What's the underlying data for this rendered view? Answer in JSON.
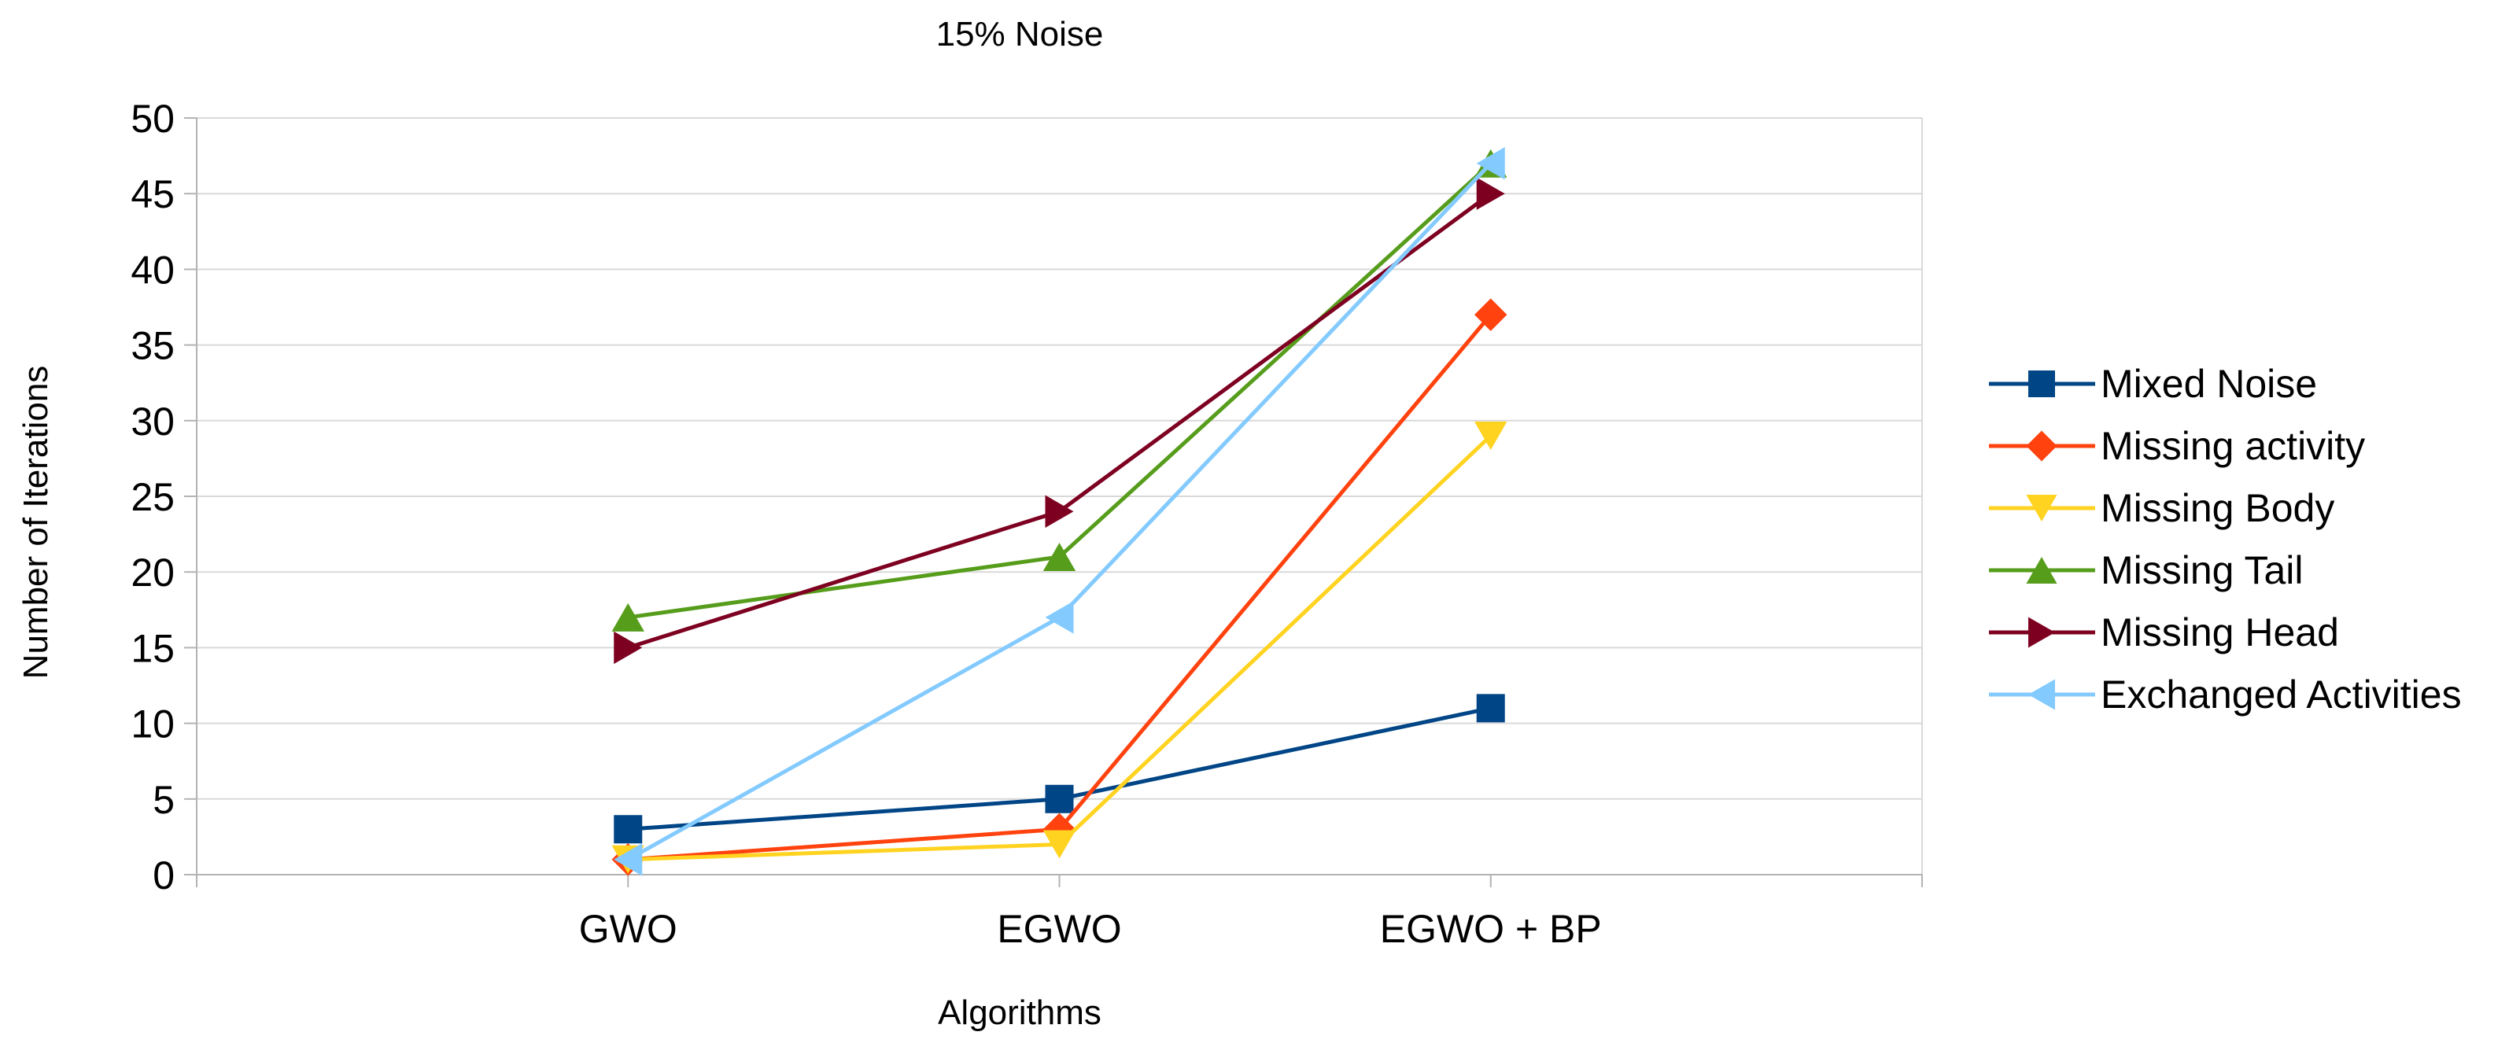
{
  "chart_data": {
    "type": "line",
    "title": "15% Noise",
    "xlabel": "Algorithms",
    "ylabel": "Number of Iterations",
    "categories": [
      "GWO",
      "EGWO",
      "EGWO + BP"
    ],
    "ylim": [
      0,
      50
    ],
    "yticks": [
      "0",
      "5",
      "10",
      "15",
      "20",
      "25",
      "30",
      "35",
      "40",
      "45",
      "50"
    ],
    "grid": true,
    "legend_position": "right",
    "series": [
      {
        "name": "Mixed Noise",
        "values": [
          3,
          5,
          11
        ],
        "color": "#004586",
        "marker": "square"
      },
      {
        "name": "Missing activity",
        "values": [
          1,
          3,
          37
        ],
        "color": "#ff420e",
        "marker": "diamond"
      },
      {
        "name": "Missing Body",
        "values": [
          1,
          2,
          29
        ],
        "color": "#ffd320",
        "marker": "triangle-down"
      },
      {
        "name": "Missing Tail",
        "values": [
          17,
          21,
          47
        ],
        "color": "#579d1c",
        "marker": "triangle-up"
      },
      {
        "name": "Missing Head",
        "values": [
          15,
          24,
          45
        ],
        "color": "#7e0021",
        "marker": "triangle-right"
      },
      {
        "name": "Exchanged Activities",
        "values": [
          1,
          17,
          47
        ],
        "color": "#83caff",
        "marker": "triangle-left"
      }
    ]
  }
}
